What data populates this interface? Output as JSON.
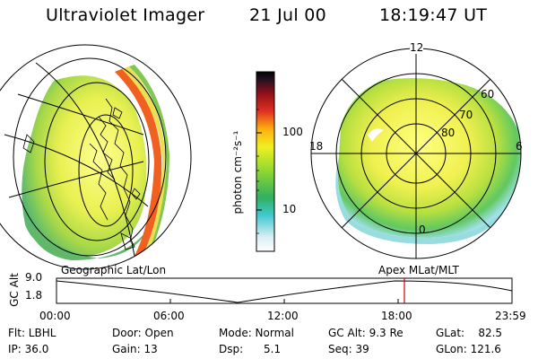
{
  "header": {
    "instrument": "Ultraviolet Imager",
    "date": "21 Jul 00",
    "time": "18:19:47 UT"
  },
  "colorbar": {
    "label": "photon cm⁻²s⁻¹",
    "tick_100": "100",
    "tick_10": "10"
  },
  "polar": {
    "mlt_12": "12",
    "mlt_18": "18",
    "mlt_6": "6",
    "mlt_0": "0",
    "lat_60": "60",
    "lat_70": "70",
    "lat_80": "80"
  },
  "timeline": {
    "left_caption": "Geographic Lat/Lon",
    "right_caption": "Apex MLat/MLT",
    "y_axis_label": "GC Alt",
    "y_top": "9.0",
    "y_bottom": "1.8",
    "x_ticks": [
      "00:00",
      "06:00",
      "12:00",
      "18:00",
      "23:59"
    ],
    "current_marker_hour": 18.33,
    "marker_color": "#cc0000"
  },
  "info": {
    "filter": "Flt: LBHL",
    "ip": "IP: 36.0",
    "door": "Door: Open",
    "gain": "Gain: 13",
    "mode": "Mode: Normal",
    "dsp": "Dsp:      5.1",
    "gc_alt": "GC Alt: 9.3 Re",
    "seq": "Seq: 39",
    "glat": "GLat:    82.5",
    "glon": "GLon: 121.6"
  }
}
